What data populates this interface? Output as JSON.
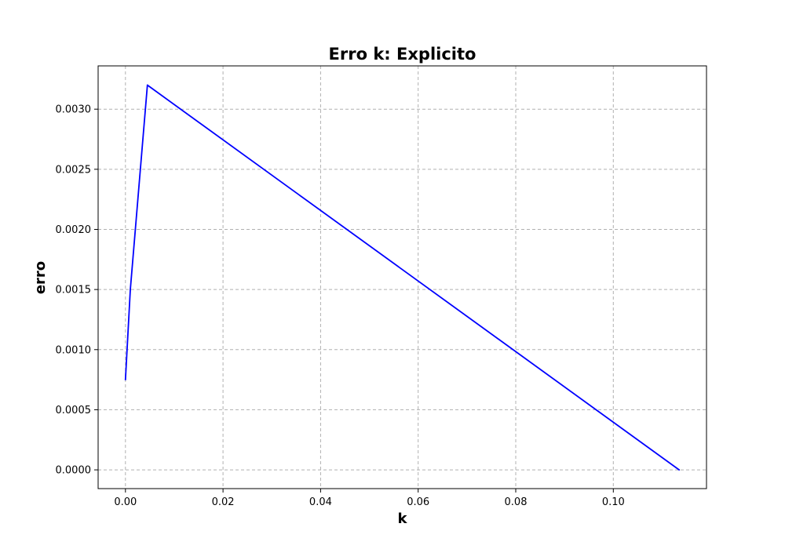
{
  "chart_data": {
    "type": "line",
    "title": "Erro k: Explicito",
    "xlabel": "k",
    "ylabel": "erro",
    "xlim": [
      -0.0056,
      0.1191
    ],
    "ylim": [
      -0.000156,
      0.00336
    ],
    "xticks": [
      0.0,
      0.02,
      0.04,
      0.06,
      0.08,
      0.1
    ],
    "xtick_labels": [
      "0.00",
      "0.02",
      "0.04",
      "0.06",
      "0.08",
      "0.10"
    ],
    "yticks": [
      0.0,
      0.0005,
      0.001,
      0.0015,
      0.002,
      0.0025,
      0.003
    ],
    "ytick_labels": [
      "0.0000",
      "0.0005",
      "0.0010",
      "0.0015",
      "0.0020",
      "0.0025",
      "0.0030"
    ],
    "grid": true,
    "series": [
      {
        "color": "#0000ff",
        "x": [
          0.0,
          0.001,
          0.0045,
          0.1135
        ],
        "y": [
          0.00075,
          0.0015,
          0.0032,
          0.0
        ]
      }
    ]
  }
}
